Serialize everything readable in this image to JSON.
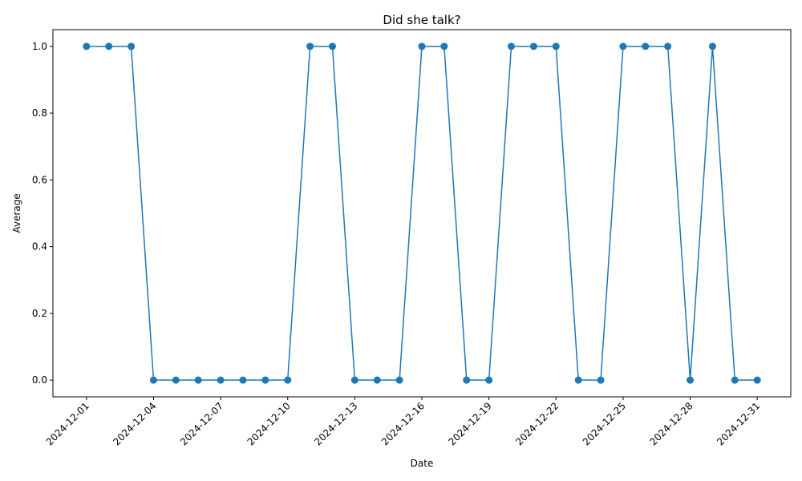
{
  "chart_data": {
    "type": "line",
    "title": "Did she talk?",
    "xlabel": "Date",
    "ylabel": "Average",
    "ylim": [
      -0.05,
      1.05
    ],
    "y_ticks": [
      "0.0",
      "0.2",
      "0.4",
      "0.6",
      "0.8",
      "1.0"
    ],
    "y_tick_values": [
      0.0,
      0.2,
      0.4,
      0.6,
      0.8,
      1.0
    ],
    "x_ticks": [
      "2024-12-01",
      "2024-12-04",
      "2024-12-07",
      "2024-12-10",
      "2024-12-13",
      "2024-12-16",
      "2024-12-19",
      "2024-12-22",
      "2024-12-25",
      "2024-12-28",
      "2024-12-31"
    ],
    "x_tick_days": [
      1,
      4,
      7,
      10,
      13,
      16,
      19,
      22,
      25,
      28,
      31
    ],
    "xlim_days": [
      -0.5,
      32.5
    ],
    "x": [
      1,
      2,
      3,
      4,
      5,
      6,
      7,
      8,
      9,
      10,
      11,
      12,
      13,
      14,
      15,
      16,
      17,
      18,
      19,
      20,
      21,
      22,
      23,
      24,
      25,
      26,
      27,
      28,
      29,
      30,
      31
    ],
    "series": [
      {
        "name": "Average",
        "color": "#1f77b4",
        "values": [
          1,
          1,
          1,
          0,
          0,
          0,
          0,
          0,
          0,
          0,
          1,
          1,
          0,
          0,
          0,
          1,
          1,
          0,
          0,
          1,
          1,
          1,
          0,
          0,
          1,
          1,
          1,
          0,
          1,
          0,
          0
        ]
      }
    ]
  }
}
